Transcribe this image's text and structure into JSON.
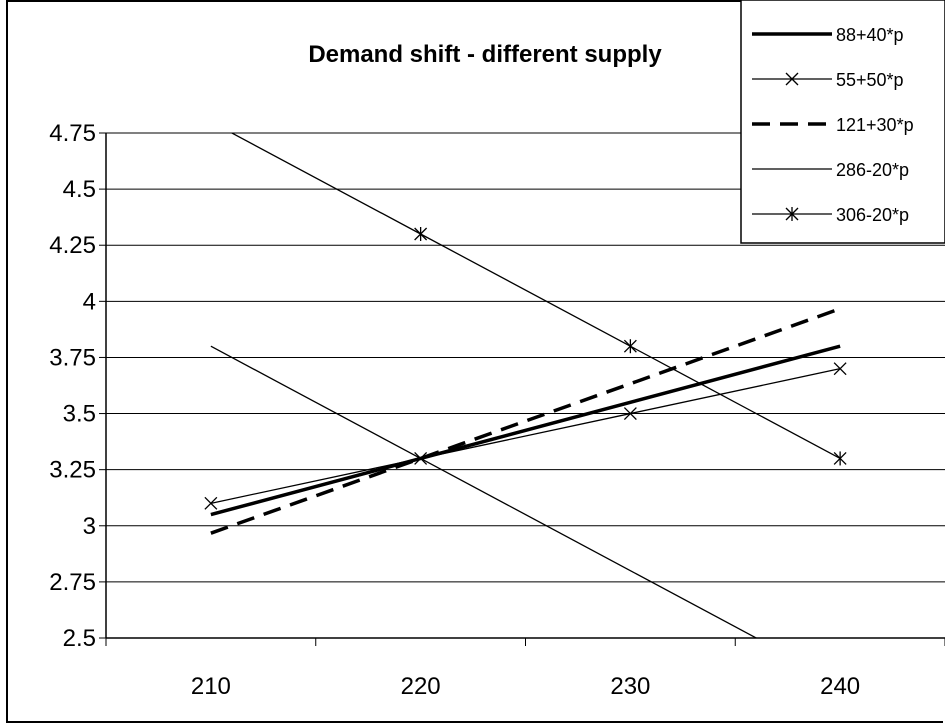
{
  "chart_data": {
    "type": "line",
    "title": "Demand shift - different supply",
    "xlabel": "",
    "ylabel": "",
    "x_ticks": [
      "210",
      "220",
      "230",
      "240"
    ],
    "y_ticks": [
      "2.5",
      "2.75",
      "3",
      "3.25",
      "3.5",
      "3.75",
      "4",
      "4.25",
      "4.5",
      "4.75"
    ],
    "xlim": [
      205,
      245
    ],
    "ylim": [
      2.5,
      4.75
    ],
    "grid": "horizontal",
    "legend_position": "top-right",
    "series": [
      {
        "name": "88+40*p",
        "x": [
          210,
          220,
          230,
          240
        ],
        "y": [
          3.05,
          3.3,
          3.55,
          3.8
        ],
        "style": "thick-solid",
        "marker": "none"
      },
      {
        "name": "55+50*p",
        "x": [
          210,
          220,
          230,
          240
        ],
        "y": [
          3.1,
          3.3,
          3.5,
          3.7
        ],
        "style": "thin-solid",
        "marker": "x"
      },
      {
        "name": "121+30*p",
        "x": [
          210,
          220,
          230,
          240
        ],
        "y": [
          2.967,
          3.3,
          3.633,
          3.967
        ],
        "style": "dashed",
        "marker": "none"
      },
      {
        "name": "286-20*p",
        "x": [
          210,
          220,
          230,
          240
        ],
        "y": [
          3.8,
          3.3,
          2.8,
          2.3
        ],
        "style": "thin-solid",
        "marker": "none"
      },
      {
        "name": "306-20*p",
        "x": [
          210,
          220,
          230,
          240
        ],
        "y": [
          4.8,
          4.3,
          3.8,
          3.3
        ],
        "style": "thin-solid",
        "marker": "asterisk"
      }
    ]
  }
}
